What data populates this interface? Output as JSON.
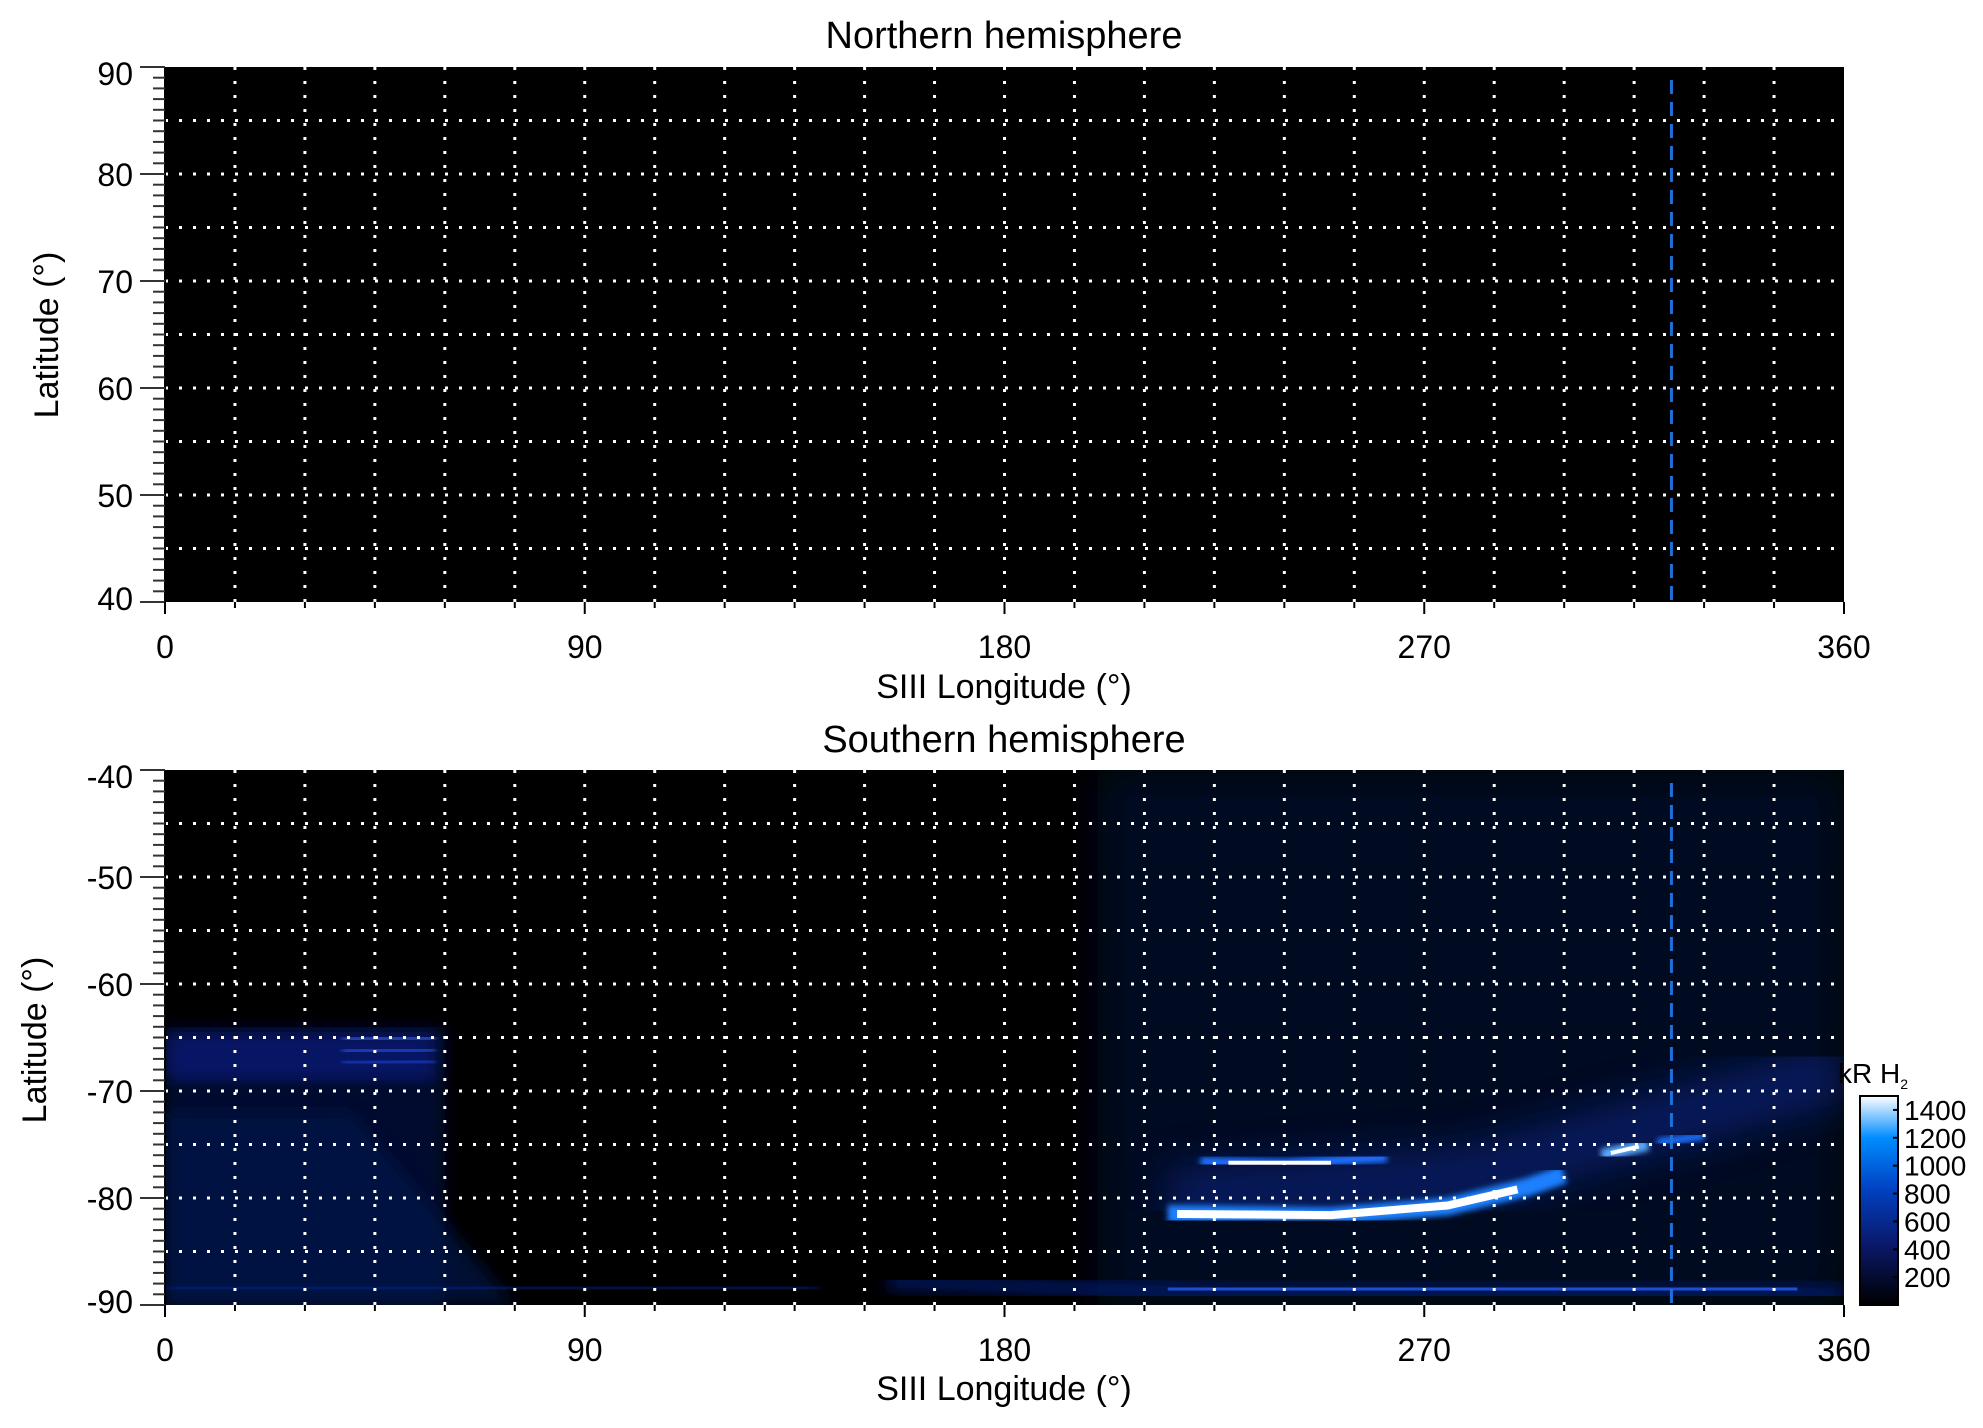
{
  "chart_data": [
    {
      "type": "heatmap",
      "title": "Northern hemisphere",
      "xlabel": "SIII Longitude (°)",
      "ylabel": "Latitude (°)",
      "xlim": [
        0,
        360
      ],
      "ylim": [
        40,
        90
      ],
      "xticks": [
        "0",
        "90",
        "180",
        "270",
        "360"
      ],
      "yticks": [
        "40",
        "50",
        "60",
        "70",
        "80",
        "90"
      ],
      "grid": {
        "on": true,
        "style": "dotted",
        "color": "#ffffff",
        "x_step": 15,
        "y_step": 5
      },
      "marker_line": {
        "longitude": 323,
        "color": "#1f6fd6",
        "style": "dashed"
      },
      "background": "#000000"
    },
    {
      "type": "heatmap",
      "title": "Southern hemisphere",
      "xlabel": "SIII Longitude (°)",
      "ylabel": "Latitude (°)",
      "xlim": [
        0,
        360
      ],
      "ylim": [
        -90,
        -40
      ],
      "xticks": [
        "0",
        "90",
        "180",
        "270",
        "360"
      ],
      "yticks": [
        "-90",
        "-80",
        "-70",
        "-60",
        "-50",
        "-40"
      ],
      "grid": {
        "on": true,
        "style": "dotted",
        "color": "#ffffff",
        "x_step": 15,
        "y_step": 5
      },
      "marker_line": {
        "longitude": 323,
        "color": "#1f6fd6",
        "style": "dashed"
      },
      "background": "#000000",
      "colorbar": {
        "label": "kR H",
        "label_subscript": "2",
        "ticks": [
          "200",
          "400",
          "600",
          "800",
          "1000",
          "1200",
          "1400"
        ],
        "range": [
          0,
          1500
        ],
        "colors": [
          "#000000",
          "#0a1a6e",
          "#0040c0",
          "#008cff",
          "#ffffff"
        ]
      }
    }
  ]
}
